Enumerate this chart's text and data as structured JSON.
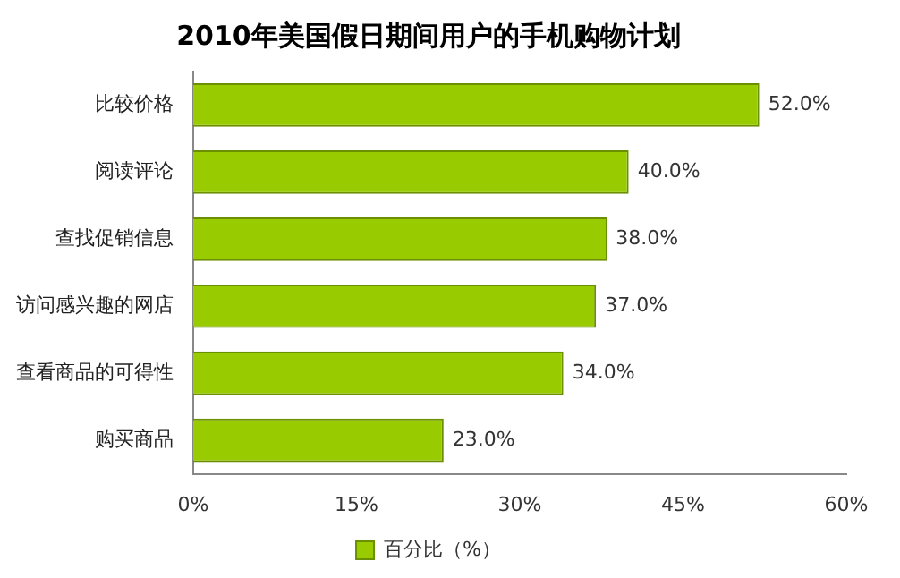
{
  "chart_data": {
    "type": "bar",
    "orientation": "horizontal",
    "title": "2010年美国假日期间用户的手机购物计划",
    "categories": [
      "比较价格",
      "阅读评论",
      "查找促销信息",
      "访问感兴趣的网店",
      "查看商品的可得性",
      "购买商品"
    ],
    "series": [
      {
        "name": "百分比（%）",
        "color": "#99cc00",
        "values": [
          52,
          40,
          38,
          37,
          34,
          23
        ],
        "value_labels": [
          "52.0%",
          "40.0%",
          "38.0%",
          "37.0%",
          "34.0%",
          "23.0%"
        ]
      }
    ],
    "xlim": [
      0,
      60
    ],
    "xticks": [
      {
        "value": 0,
        "label": "0%"
      },
      {
        "value": 15,
        "label": "15%"
      },
      {
        "value": 30,
        "label": "30%"
      },
      {
        "value": 45,
        "label": "45%"
      },
      {
        "value": 60,
        "label": "60%"
      }
    ],
    "grid": false,
    "legend": "bottom"
  }
}
